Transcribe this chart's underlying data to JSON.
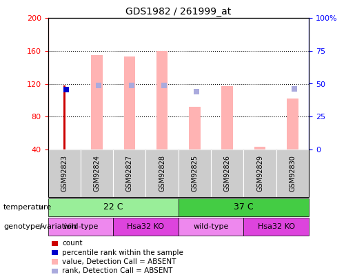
{
  "title": "GDS1982 / 261999_at",
  "samples": [
    "GSM92823",
    "GSM92824",
    "GSM92827",
    "GSM92828",
    "GSM92825",
    "GSM92826",
    "GSM92829",
    "GSM92830"
  ],
  "ylim_left": [
    40,
    200
  ],
  "ylim_right": [
    0,
    100
  ],
  "yticks_left": [
    40,
    80,
    120,
    160,
    200
  ],
  "yticks_right": [
    0,
    25,
    50,
    75,
    100
  ],
  "yticklabels_right": [
    "0",
    "25",
    "50",
    "75",
    "100%"
  ],
  "value_bars": [
    0,
    155,
    153,
    160,
    92,
    117,
    43,
    102
  ],
  "rank_markers": [
    0,
    118,
    118,
    118,
    110,
    0,
    0,
    114
  ],
  "count_bar": [
    118,
    0,
    0,
    0,
    0,
    0,
    0,
    0
  ],
  "percentile_marker": [
    113,
    0,
    0,
    0,
    0,
    0,
    0,
    0
  ],
  "value_bar_color": "#ffb3b3",
  "rank_marker_color": "#aaaadd",
  "count_bar_color": "#cc0000",
  "percentile_marker_color": "#0000cc",
  "temp_groups": [
    {
      "text": "22 C",
      "start": 0,
      "end": 4,
      "color": "#99ee99"
    },
    {
      "text": "37 C",
      "start": 4,
      "end": 8,
      "color": "#44cc44"
    }
  ],
  "geno_groups": [
    {
      "text": "wild-type",
      "start": 0,
      "end": 2,
      "color": "#ee88ee"
    },
    {
      "text": "Hsa32 KO",
      "start": 2,
      "end": 4,
      "color": "#dd44dd"
    },
    {
      "text": "wild-type",
      "start": 4,
      "end": 6,
      "color": "#ee88ee"
    },
    {
      "text": "Hsa32 KO",
      "start": 6,
      "end": 8,
      "color": "#dd44dd"
    }
  ],
  "legend_items": [
    {
      "label": "count",
      "color": "#cc0000"
    },
    {
      "label": "percentile rank within the sample",
      "color": "#0000cc"
    },
    {
      "label": "value, Detection Call = ABSENT",
      "color": "#ffb3b3"
    },
    {
      "label": "rank, Detection Call = ABSENT",
      "color": "#aaaadd"
    }
  ],
  "bar_width": 0.35,
  "marker_size": 6,
  "count_bar_width": 0.07,
  "gridline_vals": [
    80,
    120,
    160
  ],
  "col_sep_color": "#cccccc",
  "xticklabel_bg": "#cccccc",
  "temp_label": "temperature",
  "geno_label": "genotype/variation"
}
